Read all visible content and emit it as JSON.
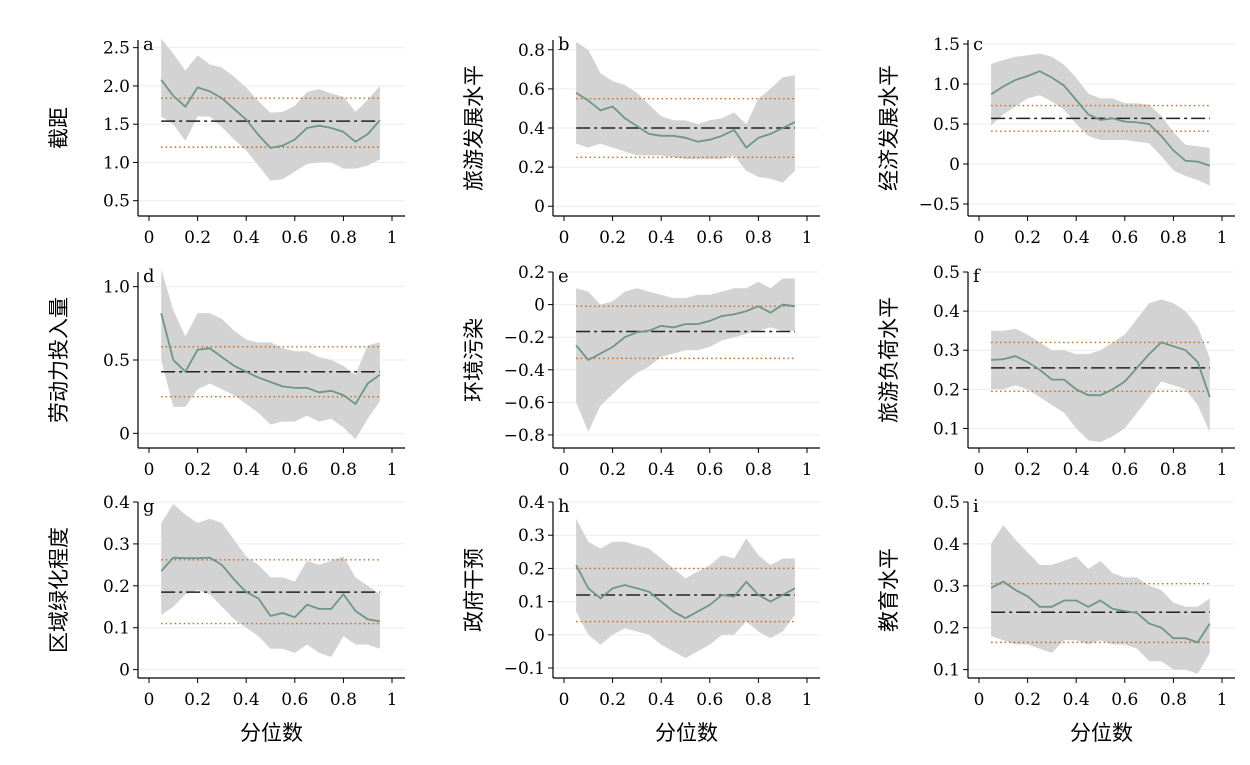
{
  "x_axis_title": "分位数",
  "chart_data": [
    {
      "type": "line",
      "panel": "a",
      "ylabel": "截距",
      "ylim": [
        0.3,
        2.6
      ],
      "yticks": [
        "0.5",
        "1.0",
        "1.5",
        "2.0",
        "2.5"
      ],
      "ols": 1.54,
      "ols_ci": [
        1.2,
        1.84
      ],
      "x": [
        0.05,
        0.1,
        0.15,
        0.2,
        0.25,
        0.3,
        0.35,
        0.4,
        0.45,
        0.5,
        0.55,
        0.6,
        0.65,
        0.7,
        0.75,
        0.8,
        0.85,
        0.9,
        0.95
      ],
      "estimate": [
        2.08,
        1.87,
        1.73,
        1.98,
        1.93,
        1.84,
        1.7,
        1.56,
        1.36,
        1.19,
        1.22,
        1.3,
        1.45,
        1.48,
        1.45,
        1.4,
        1.27,
        1.37,
        1.55
      ],
      "lower": [
        1.6,
        1.5,
        1.28,
        1.6,
        1.6,
        1.46,
        1.3,
        1.16,
        0.96,
        0.76,
        0.78,
        0.88,
        0.98,
        1.0,
        1.0,
        0.92,
        0.92,
        0.96,
        1.04
      ],
      "upper": [
        2.62,
        2.42,
        2.2,
        2.4,
        2.28,
        2.24,
        2.12,
        1.98,
        1.8,
        1.65,
        1.66,
        1.74,
        1.92,
        1.96,
        1.9,
        1.86,
        1.66,
        1.82,
        2.0
      ]
    },
    {
      "type": "line",
      "panel": "b",
      "ylabel": "旅游发展水平",
      "ylim": [
        -0.05,
        0.85
      ],
      "yticks": [
        "0",
        "0.2",
        "0.4",
        "0.6",
        "0.8"
      ],
      "ols": 0.4,
      "ols_ci": [
        0.25,
        0.55
      ],
      "x": [
        0.05,
        0.1,
        0.15,
        0.2,
        0.25,
        0.3,
        0.35,
        0.4,
        0.45,
        0.5,
        0.55,
        0.6,
        0.65,
        0.7,
        0.75,
        0.8,
        0.85,
        0.9,
        0.95
      ],
      "estimate": [
        0.58,
        0.54,
        0.49,
        0.51,
        0.45,
        0.41,
        0.37,
        0.36,
        0.36,
        0.35,
        0.33,
        0.34,
        0.36,
        0.39,
        0.3,
        0.35,
        0.37,
        0.4,
        0.43
      ],
      "lower": [
        0.32,
        0.3,
        0.32,
        0.3,
        0.28,
        0.26,
        0.26,
        0.26,
        0.25,
        0.24,
        0.24,
        0.24,
        0.24,
        0.26,
        0.18,
        0.15,
        0.14,
        0.12,
        0.18
      ],
      "upper": [
        0.84,
        0.8,
        0.68,
        0.64,
        0.62,
        0.58,
        0.52,
        0.46,
        0.44,
        0.44,
        0.42,
        0.44,
        0.45,
        0.48,
        0.42,
        0.55,
        0.6,
        0.66,
        0.67
      ]
    },
    {
      "type": "line",
      "panel": "c",
      "ylabel": "经济发展水平",
      "ylim": [
        -0.65,
        1.55
      ],
      "yticks": [
        "−0.5",
        "0",
        "0.5",
        "1.0",
        "1.5"
      ],
      "ols": 0.57,
      "ols_ci": [
        0.41,
        0.73
      ],
      "x": [
        0.05,
        0.1,
        0.15,
        0.2,
        0.25,
        0.3,
        0.35,
        0.4,
        0.45,
        0.5,
        0.55,
        0.6,
        0.65,
        0.7,
        0.75,
        0.8,
        0.85,
        0.9,
        0.95
      ],
      "estimate": [
        0.87,
        0.97,
        1.05,
        1.1,
        1.16,
        1.08,
        0.98,
        0.8,
        0.62,
        0.55,
        0.57,
        0.53,
        0.52,
        0.5,
        0.35,
        0.17,
        0.04,
        0.03,
        -0.02
      ],
      "lower": [
        0.48,
        0.62,
        0.72,
        0.82,
        0.86,
        0.78,
        0.68,
        0.5,
        0.35,
        0.3,
        0.3,
        0.3,
        0.28,
        0.26,
        0.1,
        -0.08,
        -0.15,
        -0.2,
        -0.27
      ],
      "upper": [
        1.25,
        1.3,
        1.34,
        1.36,
        1.38,
        1.34,
        1.24,
        1.08,
        0.88,
        0.82,
        0.82,
        0.76,
        0.76,
        0.74,
        0.6,
        0.4,
        0.24,
        0.22,
        0.2
      ]
    },
    {
      "type": "line",
      "panel": "d",
      "ylabel": "劳动力投入量",
      "ylim": [
        -0.1,
        1.1
      ],
      "yticks": [
        "0",
        "0.5",
        "1.0"
      ],
      "ols": 0.42,
      "ols_ci": [
        0.25,
        0.59
      ],
      "x": [
        0.05,
        0.1,
        0.15,
        0.2,
        0.25,
        0.3,
        0.35,
        0.4,
        0.45,
        0.5,
        0.55,
        0.6,
        0.65,
        0.7,
        0.75,
        0.8,
        0.85,
        0.9,
        0.95
      ],
      "estimate": [
        0.82,
        0.5,
        0.42,
        0.57,
        0.58,
        0.52,
        0.46,
        0.42,
        0.38,
        0.35,
        0.32,
        0.31,
        0.31,
        0.28,
        0.29,
        0.26,
        0.2,
        0.34,
        0.4
      ],
      "lower": [
        0.5,
        0.18,
        0.18,
        0.3,
        0.34,
        0.3,
        0.26,
        0.2,
        0.14,
        0.06,
        0.08,
        0.08,
        0.12,
        0.08,
        0.1,
        0.04,
        -0.04,
        0.1,
        0.22
      ],
      "upper": [
        1.12,
        0.84,
        0.66,
        0.82,
        0.82,
        0.78,
        0.7,
        0.64,
        0.62,
        0.62,
        0.58,
        0.56,
        0.56,
        0.52,
        0.5,
        0.46,
        0.4,
        0.6,
        0.62
      ]
    },
    {
      "type": "line",
      "panel": "e",
      "ylabel": "环境污染",
      "ylim": [
        -0.88,
        0.2
      ],
      "yticks": [
        "−0.8",
        "−0.6",
        "−0.4",
        "−0.2",
        "0",
        "0.2"
      ],
      "ols": -0.165,
      "ols_ci": [
        -0.33,
        -0.01
      ],
      "x": [
        0.05,
        0.1,
        0.15,
        0.2,
        0.25,
        0.3,
        0.35,
        0.4,
        0.45,
        0.5,
        0.55,
        0.6,
        0.65,
        0.7,
        0.75,
        0.8,
        0.85,
        0.9,
        0.95
      ],
      "estimate": [
        -0.25,
        -0.34,
        -0.3,
        -0.26,
        -0.2,
        -0.17,
        -0.16,
        -0.13,
        -0.14,
        -0.12,
        -0.12,
        -0.1,
        -0.07,
        -0.06,
        -0.04,
        -0.01,
        -0.05,
        0.0,
        -0.01
      ],
      "lower": [
        -0.6,
        -0.78,
        -0.62,
        -0.55,
        -0.48,
        -0.42,
        -0.38,
        -0.32,
        -0.3,
        -0.28,
        -0.28,
        -0.26,
        -0.22,
        -0.2,
        -0.18,
        -0.16,
        -0.14,
        -0.16,
        -0.16
      ],
      "upper": [
        0.1,
        0.08,
        0.0,
        0.02,
        0.08,
        0.1,
        0.08,
        0.06,
        0.04,
        0.04,
        0.06,
        0.06,
        0.08,
        0.1,
        0.1,
        0.14,
        0.1,
        0.16,
        0.16
      ]
    },
    {
      "type": "line",
      "panel": "f",
      "ylabel": "旅游负荷水平",
      "ylim": [
        0.05,
        0.5
      ],
      "yticks": [
        "0.1",
        "0.2",
        "0.3",
        "0.4",
        "0.5"
      ],
      "ols": 0.255,
      "ols_ci": [
        0.195,
        0.32
      ],
      "x": [
        0.05,
        0.1,
        0.15,
        0.2,
        0.25,
        0.3,
        0.35,
        0.4,
        0.45,
        0.5,
        0.55,
        0.6,
        0.65,
        0.7,
        0.75,
        0.8,
        0.85,
        0.9,
        0.95
      ],
      "estimate": [
        0.275,
        0.277,
        0.285,
        0.27,
        0.25,
        0.225,
        0.225,
        0.2,
        0.185,
        0.185,
        0.2,
        0.22,
        0.255,
        0.29,
        0.32,
        0.31,
        0.3,
        0.27,
        0.18
      ],
      "lower": [
        0.2,
        0.2,
        0.21,
        0.2,
        0.18,
        0.16,
        0.14,
        0.1,
        0.07,
        0.065,
        0.08,
        0.1,
        0.14,
        0.18,
        0.22,
        0.21,
        0.2,
        0.16,
        0.09
      ],
      "upper": [
        0.35,
        0.35,
        0.355,
        0.34,
        0.32,
        0.3,
        0.3,
        0.29,
        0.29,
        0.3,
        0.32,
        0.34,
        0.38,
        0.42,
        0.43,
        0.42,
        0.4,
        0.36,
        0.28
      ]
    },
    {
      "type": "line",
      "panel": "g",
      "ylabel": "区域绿化程度",
      "ylim": [
        -0.02,
        0.4
      ],
      "yticks": [
        "0",
        "0.1",
        "0.2",
        "0.3",
        "0.4"
      ],
      "ols": 0.185,
      "ols_ci": [
        0.11,
        0.262
      ],
      "x": [
        0.05,
        0.1,
        0.15,
        0.2,
        0.25,
        0.3,
        0.35,
        0.4,
        0.45,
        0.5,
        0.55,
        0.6,
        0.65,
        0.7,
        0.75,
        0.8,
        0.85,
        0.9,
        0.95
      ],
      "estimate": [
        0.235,
        0.267,
        0.266,
        0.266,
        0.267,
        0.25,
        0.215,
        0.185,
        0.17,
        0.128,
        0.135,
        0.125,
        0.155,
        0.145,
        0.145,
        0.18,
        0.14,
        0.12,
        0.115
      ],
      "lower": [
        0.13,
        0.15,
        0.18,
        0.19,
        0.18,
        0.15,
        0.12,
        0.1,
        0.08,
        0.05,
        0.05,
        0.04,
        0.06,
        0.04,
        0.03,
        0.08,
        0.06,
        0.06,
        0.05
      ],
      "upper": [
        0.35,
        0.395,
        0.37,
        0.35,
        0.36,
        0.35,
        0.31,
        0.27,
        0.25,
        0.22,
        0.22,
        0.21,
        0.26,
        0.25,
        0.26,
        0.27,
        0.22,
        0.2,
        0.18
      ]
    },
    {
      "type": "line",
      "panel": "h",
      "ylabel": "政府干预",
      "ylim": [
        -0.13,
        0.4
      ],
      "yticks": [
        "−0.1",
        "0",
        "0.1",
        "0.2",
        "0.3",
        "0.4"
      ],
      "ols": 0.12,
      "ols_ci": [
        0.04,
        0.2
      ],
      "x": [
        0.05,
        0.1,
        0.15,
        0.2,
        0.25,
        0.3,
        0.35,
        0.4,
        0.45,
        0.5,
        0.55,
        0.6,
        0.65,
        0.7,
        0.75,
        0.8,
        0.85,
        0.9,
        0.95
      ],
      "estimate": [
        0.21,
        0.14,
        0.11,
        0.14,
        0.15,
        0.14,
        0.13,
        0.1,
        0.07,
        0.05,
        0.07,
        0.09,
        0.12,
        0.115,
        0.16,
        0.12,
        0.1,
        0.12,
        0.14
      ],
      "lower": [
        0.07,
        0.0,
        -0.03,
        0.0,
        0.02,
        0.01,
        0.0,
        -0.03,
        -0.05,
        -0.07,
        -0.05,
        -0.03,
        0.0,
        0.0,
        0.04,
        0.01,
        -0.01,
        0.01,
        0.06
      ],
      "upper": [
        0.35,
        0.28,
        0.26,
        0.28,
        0.28,
        0.27,
        0.26,
        0.23,
        0.2,
        0.17,
        0.19,
        0.21,
        0.24,
        0.23,
        0.29,
        0.24,
        0.21,
        0.23,
        0.23
      ]
    },
    {
      "type": "line",
      "panel": "i",
      "ylabel": "教育水平",
      "ylim": [
        0.08,
        0.5
      ],
      "yticks": [
        "0.1",
        "0.2",
        "0.3",
        "0.4",
        "0.5"
      ],
      "ols": 0.237,
      "ols_ci": [
        0.165,
        0.305
      ],
      "x": [
        0.05,
        0.1,
        0.15,
        0.2,
        0.25,
        0.3,
        0.35,
        0.4,
        0.45,
        0.5,
        0.55,
        0.6,
        0.65,
        0.7,
        0.75,
        0.8,
        0.85,
        0.9,
        0.95
      ],
      "estimate": [
        0.295,
        0.31,
        0.29,
        0.275,
        0.25,
        0.25,
        0.265,
        0.265,
        0.25,
        0.265,
        0.245,
        0.24,
        0.235,
        0.21,
        0.2,
        0.175,
        0.175,
        0.165,
        0.21
      ],
      "lower": [
        0.18,
        0.17,
        0.16,
        0.16,
        0.15,
        0.14,
        0.17,
        0.17,
        0.16,
        0.17,
        0.16,
        0.16,
        0.15,
        0.12,
        0.12,
        0.1,
        0.1,
        0.09,
        0.14
      ],
      "upper": [
        0.4,
        0.445,
        0.41,
        0.38,
        0.35,
        0.35,
        0.36,
        0.37,
        0.34,
        0.36,
        0.33,
        0.32,
        0.32,
        0.3,
        0.29,
        0.26,
        0.25,
        0.25,
        0.27
      ]
    }
  ],
  "x_ticks": [
    "0",
    "0.2",
    "0.4",
    "0.6",
    "0.8",
    "1"
  ],
  "colors": {
    "band": "#d3d3d3",
    "estimate": "#6f9585",
    "ols": "#222222",
    "ci": "#c8651b"
  }
}
